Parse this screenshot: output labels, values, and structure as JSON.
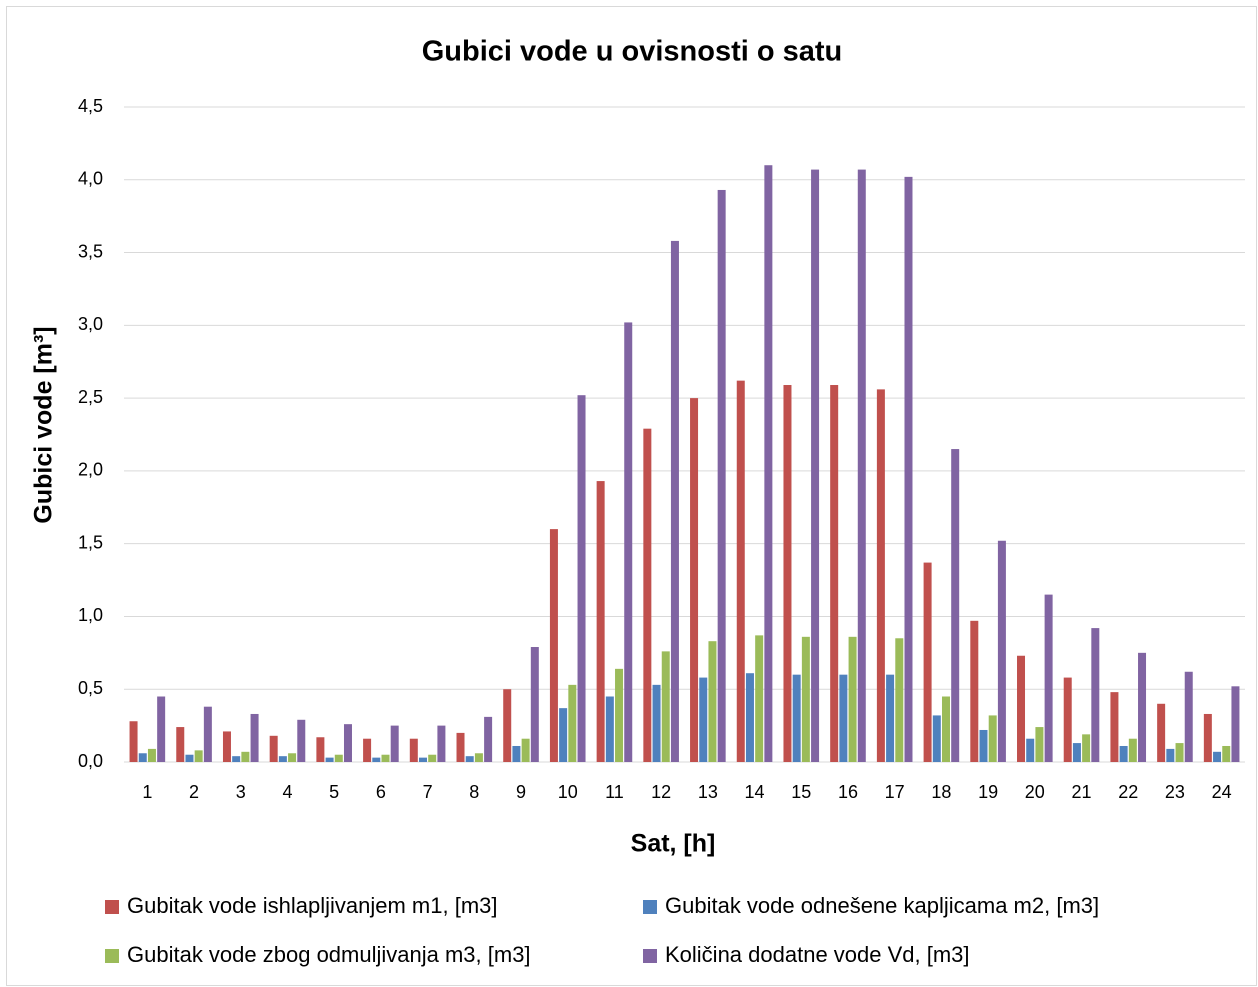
{
  "chart_data": {
    "type": "bar",
    "title": "Gubici vode u ovisnosti o satu",
    "x_label": "Sat, [h]",
    "y_label": "Gubici vode [m³]",
    "categories": [
      "1",
      "2",
      "3",
      "4",
      "5",
      "6",
      "7",
      "8",
      "9",
      "10",
      "11",
      "12",
      "13",
      "14",
      "15",
      "16",
      "17",
      "18",
      "19",
      "20",
      "21",
      "22",
      "23",
      "24"
    ],
    "series": [
      {
        "name": "Gubitak vode ishlapljivanjem m1, [m3]",
        "color": "#c0504d",
        "values": [
          0.28,
          0.24,
          0.21,
          0.18,
          0.17,
          0.16,
          0.16,
          0.2,
          0.5,
          1.6,
          1.93,
          2.29,
          2.5,
          2.62,
          2.59,
          2.59,
          2.56,
          1.37,
          0.97,
          0.73,
          0.58,
          0.48,
          0.4,
          0.33
        ]
      },
      {
        "name": "Gubitak vode odnešene kapljicama m2, [m3]",
        "color": "#4f81bd",
        "values": [
          0.06,
          0.05,
          0.04,
          0.04,
          0.03,
          0.03,
          0.03,
          0.04,
          0.11,
          0.37,
          0.45,
          0.53,
          0.58,
          0.61,
          0.6,
          0.6,
          0.6,
          0.32,
          0.22,
          0.16,
          0.13,
          0.11,
          0.09,
          0.07
        ]
      },
      {
        "name": "Gubitak vode zbog odmuljivanja m3, [m3]",
        "color": "#9bbb59",
        "values": [
          0.09,
          0.08,
          0.07,
          0.06,
          0.05,
          0.05,
          0.05,
          0.06,
          0.16,
          0.53,
          0.64,
          0.76,
          0.83,
          0.87,
          0.86,
          0.86,
          0.85,
          0.45,
          0.32,
          0.24,
          0.19,
          0.16,
          0.13,
          0.11
        ]
      },
      {
        "name": "Količina dodatne vode Vd, [m3]",
        "color": "#8064a2",
        "values": [
          0.45,
          0.38,
          0.33,
          0.29,
          0.26,
          0.25,
          0.25,
          0.31,
          0.79,
          2.52,
          3.02,
          3.58,
          3.93,
          4.1,
          4.07,
          4.07,
          4.02,
          2.15,
          1.52,
          1.15,
          0.92,
          0.75,
          0.62,
          0.52
        ]
      }
    ],
    "ylim": [
      0,
      4.5
    ],
    "yticks": [
      {
        "value": 0,
        "label": "0,0"
      },
      {
        "value": 0.5,
        "label": "0,5"
      },
      {
        "value": 1,
        "label": "1,0"
      },
      {
        "value": 1.5,
        "label": "1,5"
      },
      {
        "value": 2,
        "label": "2,0"
      },
      {
        "value": 2.5,
        "label": "2,5"
      },
      {
        "value": 3,
        "label": "3,0"
      },
      {
        "value": 3.5,
        "label": "3,5"
      },
      {
        "value": 4,
        "label": "4,0"
      },
      {
        "value": 4.5,
        "label": "4,5"
      }
    ],
    "grid": true,
    "legend": "bottom"
  }
}
